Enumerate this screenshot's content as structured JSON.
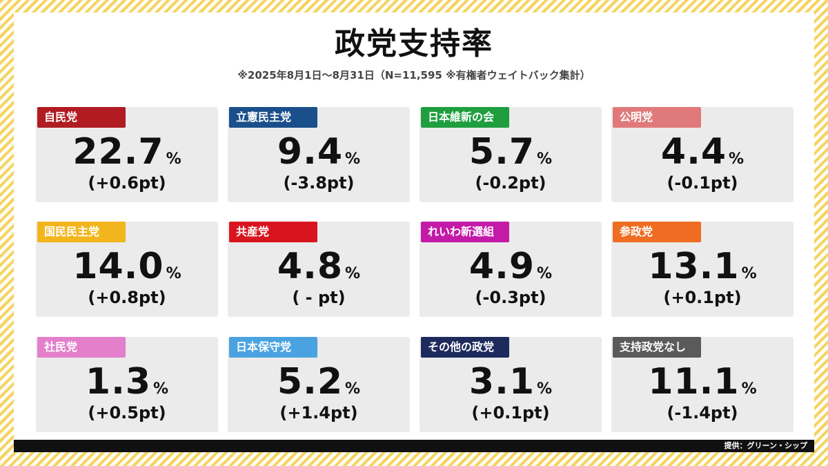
{
  "header": {
    "title": "政党支持率",
    "subtitle": "※2025年8月1日～8月31日（N=11,595 ※有権者ウェイトバック集計）"
  },
  "footer": {
    "credit": "提供：グリーン・シップ"
  },
  "chart_data": {
    "type": "table",
    "title": "政党支持率",
    "subtitle": "※2025年8月1日～8月31日（N=11,595 ※有権者ウェイトバック集計）",
    "unit": "%",
    "parties": [
      {
        "name": "自民党",
        "value": "22.7",
        "change": "(+0.6pt)",
        "color": "#b01c22"
      },
      {
        "name": "立憲民主党",
        "value": "9.4",
        "change": "(-3.8pt)",
        "color": "#1a4f8b"
      },
      {
        "name": "日本維新の会",
        "value": "5.7",
        "change": "(-0.2pt)",
        "color": "#1e9e3e"
      },
      {
        "name": "公明党",
        "value": "4.4",
        "change": "(-0.1pt)",
        "color": "#e07a7a"
      },
      {
        "name": "国民民主党",
        "value": "14.0",
        "change": "(+0.8pt)",
        "color": "#f2b51c"
      },
      {
        "name": "共産党",
        "value": "4.8",
        "change": "( - pt)",
        "color": "#d8151f"
      },
      {
        "name": "れいわ新選組",
        "value": "4.9",
        "change": "(-0.3pt)",
        "color": "#c41aa8"
      },
      {
        "name": "参政党",
        "value": "13.1",
        "change": "(+0.1pt)",
        "color": "#ee6d22"
      },
      {
        "name": "社民党",
        "value": "1.3",
        "change": "(+0.5pt)",
        "color": "#e37fcb"
      },
      {
        "name": "日本保守党",
        "value": "5.2",
        "change": "(+1.4pt)",
        "color": "#4aa3e0"
      },
      {
        "name": "その他の政党",
        "value": "3.1",
        "change": "(+0.1pt)",
        "color": "#1d2b5c"
      },
      {
        "name": "支持政党なし",
        "value": "11.1",
        "change": "(-1.4pt)",
        "color": "#5a5a5a"
      }
    ]
  }
}
